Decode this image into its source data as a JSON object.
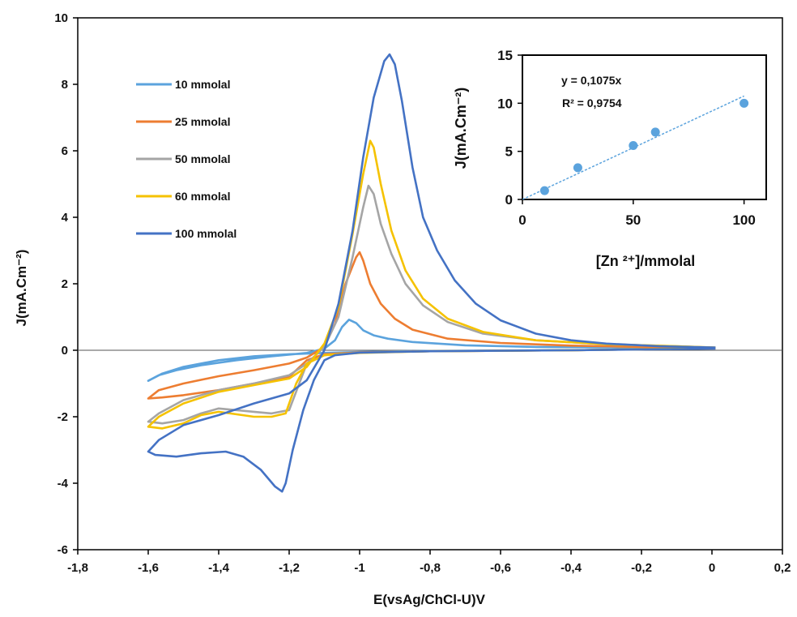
{
  "chart_data": [
    {
      "type": "line",
      "xlabel": "E(vsAg/ChCl-U)V",
      "ylabel": "J(mA.Cm⁻²)",
      "xlim": [
        -1.8,
        0.2
      ],
      "ylim": [
        -6,
        10
      ],
      "x_ticks": [
        "-1,8",
        "-1,6",
        "-1,4",
        "-1,2",
        "-1",
        "-0,8",
        "-0,6",
        "-0,4",
        "-0,2",
        "0",
        "0,2"
      ],
      "y_ticks": [
        "-6",
        "-4",
        "-2",
        "0",
        "2",
        "4",
        "6",
        "8",
        "10"
      ],
      "legend_position": "top-left",
      "series": [
        {
          "name": "10 mmolal",
          "color": "#5ba3dd",
          "points": [
            [
              0.01,
              0.06
            ],
            [
              -0.4,
              0.0
            ],
            [
              -0.8,
              -0.02
            ],
            [
              -1.0,
              -0.05
            ],
            [
              -1.1,
              -0.08
            ],
            [
              -1.2,
              -0.12
            ],
            [
              -1.3,
              -0.18
            ],
            [
              -1.4,
              -0.3
            ],
            [
              -1.5,
              -0.5
            ],
            [
              -1.56,
              -0.7
            ],
            [
              -1.6,
              -0.92
            ],
            [
              -1.57,
              -0.75
            ],
            [
              -1.52,
              -0.6
            ],
            [
              -1.45,
              -0.45
            ],
            [
              -1.35,
              -0.3
            ],
            [
              -1.25,
              -0.18
            ],
            [
              -1.15,
              -0.08
            ],
            [
              -1.1,
              0.05
            ],
            [
              -1.07,
              0.3
            ],
            [
              -1.05,
              0.7
            ],
            [
              -1.03,
              0.92
            ],
            [
              -1.01,
              0.82
            ],
            [
              -0.99,
              0.6
            ],
            [
              -0.96,
              0.45
            ],
            [
              -0.92,
              0.35
            ],
            [
              -0.85,
              0.25
            ],
            [
              -0.7,
              0.15
            ],
            [
              -0.5,
              0.1
            ],
            [
              -0.2,
              0.08
            ],
            [
              0.01,
              0.06
            ]
          ]
        },
        {
          "name": "25 mmolal",
          "color": "#ed7d31",
          "points": [
            [
              0.01,
              0.06
            ],
            [
              -0.4,
              0.0
            ],
            [
              -0.8,
              -0.03
            ],
            [
              -1.0,
              -0.06
            ],
            [
              -1.1,
              -0.12
            ],
            [
              -1.15,
              -0.3
            ],
            [
              -1.2,
              -0.8
            ],
            [
              -1.3,
              -1.0
            ],
            [
              -1.4,
              -1.2
            ],
            [
              -1.5,
              -1.35
            ],
            [
              -1.56,
              -1.42
            ],
            [
              -1.6,
              -1.45
            ],
            [
              -1.57,
              -1.2
            ],
            [
              -1.5,
              -1.0
            ],
            [
              -1.4,
              -0.78
            ],
            [
              -1.3,
              -0.6
            ],
            [
              -1.2,
              -0.4
            ],
            [
              -1.15,
              -0.22
            ],
            [
              -1.1,
              0.1
            ],
            [
              -1.07,
              0.8
            ],
            [
              -1.04,
              2.0
            ],
            [
              -1.01,
              2.8
            ],
            [
              -1.0,
              2.95
            ],
            [
              -0.99,
              2.7
            ],
            [
              -0.97,
              2.0
            ],
            [
              -0.94,
              1.4
            ],
            [
              -0.9,
              0.95
            ],
            [
              -0.85,
              0.62
            ],
            [
              -0.75,
              0.35
            ],
            [
              -0.6,
              0.22
            ],
            [
              -0.4,
              0.14
            ],
            [
              -0.2,
              0.1
            ],
            [
              0.01,
              0.06
            ]
          ]
        },
        {
          "name": "50 mmolal",
          "color": "#a5a5a5",
          "points": [
            [
              0.01,
              0.06
            ],
            [
              -0.4,
              0.0
            ],
            [
              -0.8,
              -0.03
            ],
            [
              -1.0,
              -0.07
            ],
            [
              -1.1,
              -0.15
            ],
            [
              -1.15,
              -0.4
            ],
            [
              -1.2,
              -1.8
            ],
            [
              -1.25,
              -1.9
            ],
            [
              -1.3,
              -1.85
            ],
            [
              -1.4,
              -1.75
            ],
            [
              -1.45,
              -1.9
            ],
            [
              -1.5,
              -2.1
            ],
            [
              -1.56,
              -2.2
            ],
            [
              -1.6,
              -2.15
            ],
            [
              -1.57,
              -1.9
            ],
            [
              -1.5,
              -1.5
            ],
            [
              -1.4,
              -1.2
            ],
            [
              -1.3,
              -1.0
            ],
            [
              -1.2,
              -0.75
            ],
            [
              -1.15,
              -0.4
            ],
            [
              -1.1,
              0.1
            ],
            [
              -1.06,
              1.0
            ],
            [
              -1.02,
              2.8
            ],
            [
              -0.99,
              4.3
            ],
            [
              -0.975,
              4.95
            ],
            [
              -0.96,
              4.7
            ],
            [
              -0.94,
              3.8
            ],
            [
              -0.91,
              2.9
            ],
            [
              -0.87,
              2.0
            ],
            [
              -0.82,
              1.35
            ],
            [
              -0.75,
              0.85
            ],
            [
              -0.65,
              0.5
            ],
            [
              -0.5,
              0.3
            ],
            [
              -0.3,
              0.18
            ],
            [
              -0.1,
              0.12
            ],
            [
              0.01,
              0.08
            ]
          ]
        },
        {
          "name": "60 mmolal",
          "color": "#f5c200",
          "points": [
            [
              0.01,
              0.06
            ],
            [
              -0.4,
              0.0
            ],
            [
              -0.8,
              -0.03
            ],
            [
              -1.0,
              -0.08
            ],
            [
              -1.1,
              -0.15
            ],
            [
              -1.15,
              -0.4
            ],
            [
              -1.18,
              -1.0
            ],
            [
              -1.21,
              -1.9
            ],
            [
              -1.25,
              -2.0
            ],
            [
              -1.3,
              -2.0
            ],
            [
              -1.4,
              -1.85
            ],
            [
              -1.45,
              -1.95
            ],
            [
              -1.5,
              -2.2
            ],
            [
              -1.56,
              -2.35
            ],
            [
              -1.6,
              -2.3
            ],
            [
              -1.57,
              -2.0
            ],
            [
              -1.5,
              -1.6
            ],
            [
              -1.4,
              -1.25
            ],
            [
              -1.3,
              -1.05
            ],
            [
              -1.2,
              -0.85
            ],
            [
              -1.15,
              -0.5
            ],
            [
              -1.1,
              0.2
            ],
            [
              -1.06,
              1.3
            ],
            [
              -1.02,
              3.5
            ],
            [
              -0.99,
              5.3
            ],
            [
              -0.97,
              6.3
            ],
            [
              -0.96,
              6.1
            ],
            [
              -0.94,
              5.0
            ],
            [
              -0.91,
              3.6
            ],
            [
              -0.87,
              2.4
            ],
            [
              -0.82,
              1.55
            ],
            [
              -0.75,
              0.95
            ],
            [
              -0.65,
              0.55
            ],
            [
              -0.5,
              0.3
            ],
            [
              -0.3,
              0.18
            ],
            [
              -0.1,
              0.12
            ],
            [
              0.01,
              0.08
            ]
          ]
        },
        {
          "name": "100 mmolal",
          "color": "#4472c4",
          "points": [
            [
              0.01,
              0.05
            ],
            [
              -0.4,
              0.0
            ],
            [
              -0.8,
              -0.03
            ],
            [
              -1.0,
              -0.07
            ],
            [
              -1.07,
              -0.15
            ],
            [
              -1.1,
              -0.3
            ],
            [
              -1.13,
              -0.9
            ],
            [
              -1.16,
              -1.8
            ],
            [
              -1.19,
              -3.0
            ],
            [
              -1.21,
              -4.0
            ],
            [
              -1.22,
              -4.25
            ],
            [
              -1.24,
              -4.1
            ],
            [
              -1.28,
              -3.6
            ],
            [
              -1.33,
              -3.2
            ],
            [
              -1.38,
              -3.05
            ],
            [
              -1.45,
              -3.1
            ],
            [
              -1.52,
              -3.2
            ],
            [
              -1.58,
              -3.15
            ],
            [
              -1.6,
              -3.05
            ],
            [
              -1.57,
              -2.7
            ],
            [
              -1.5,
              -2.25
            ],
            [
              -1.4,
              -1.95
            ],
            [
              -1.3,
              -1.6
            ],
            [
              -1.2,
              -1.3
            ],
            [
              -1.15,
              -0.9
            ],
            [
              -1.1,
              0.0
            ],
            [
              -1.06,
              1.4
            ],
            [
              -1.02,
              3.6
            ],
            [
              -0.99,
              5.8
            ],
            [
              -0.96,
              7.6
            ],
            [
              -0.93,
              8.7
            ],
            [
              -0.915,
              8.9
            ],
            [
              -0.9,
              8.6
            ],
            [
              -0.88,
              7.5
            ],
            [
              -0.85,
              5.5
            ],
            [
              -0.82,
              4.0
            ],
            [
              -0.78,
              3.0
            ],
            [
              -0.73,
              2.1
            ],
            [
              -0.67,
              1.4
            ],
            [
              -0.6,
              0.9
            ],
            [
              -0.5,
              0.5
            ],
            [
              -0.4,
              0.3
            ],
            [
              -0.3,
              0.2
            ],
            [
              -0.15,
              0.12
            ],
            [
              0.01,
              0.08
            ]
          ]
        }
      ]
    },
    {
      "type": "scatter",
      "xlabel": "[Zn ²⁺]/mmolal",
      "ylabel": "J(mA.Cm⁻²)",
      "xlim": [
        0,
        110
      ],
      "ylim": [
        0,
        15
      ],
      "x_ticks": [
        "0",
        "50",
        "100"
      ],
      "y_ticks": [
        "0",
        "5",
        "10",
        "15"
      ],
      "equation": "y = 0,1075x",
      "r_squared": "R² = 0,9754",
      "color": "#5ba3dd",
      "x": [
        10,
        25,
        50,
        60,
        100
      ],
      "y": [
        0.92,
        3.3,
        5.6,
        7.0,
        10.0
      ],
      "trendline_slope": 0.1075
    }
  ]
}
